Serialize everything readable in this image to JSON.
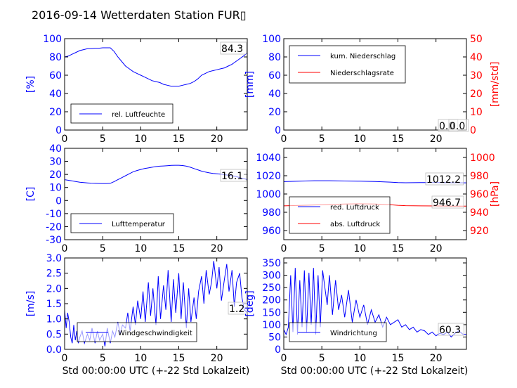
{
  "title": "2016-09-14 Wetterdaten Station FUR▯",
  "xlabel": "Std 00:00:00 UTC (+-22 Std Lokalzeit)",
  "colors": {
    "blue": "#0000ff",
    "red": "#ff0000",
    "black": "#000000"
  },
  "chart_data": [
    {
      "id": "humidity",
      "type": "line",
      "x_ticks": [
        0,
        5,
        10,
        15,
        20
      ],
      "xlim": [
        0,
        24
      ],
      "ylabel": "[%]",
      "ylim": [
        0,
        100
      ],
      "y_ticks": [
        0,
        20,
        40,
        60,
        80,
        100
      ],
      "legend_placement": "lower-left",
      "last_value_label": "84.3",
      "series": [
        {
          "name": "rel. Luftfeuchte",
          "color": "#0000ff",
          "x": [
            0,
            0.5,
            1,
            1.5,
            2,
            2.5,
            3,
            3.5,
            4,
            4.5,
            5,
            5.5,
            6,
            6.5,
            7,
            7.5,
            8,
            8.5,
            9,
            9.5,
            10,
            10.5,
            11,
            11.5,
            12,
            12.5,
            13,
            13.5,
            14,
            14.5,
            15,
            15.5,
            16,
            16.5,
            17,
            17.5,
            18,
            18.5,
            19,
            19.5,
            20,
            20.5,
            21,
            21.5,
            22,
            22.5,
            23,
            23.5,
            24
          ],
          "values": [
            80,
            81,
            83,
            85,
            87,
            88,
            89,
            89,
            89.5,
            89.5,
            90,
            90,
            90,
            86,
            80,
            75,
            70,
            67,
            64,
            62,
            60,
            58,
            56,
            54,
            53,
            52,
            50,
            49,
            48,
            48,
            48,
            49,
            50,
            51,
            53,
            56,
            60,
            62,
            64,
            65,
            66,
            67,
            68,
            70,
            72,
            75,
            78,
            81,
            84.3
          ]
        }
      ]
    },
    {
      "id": "precipitation",
      "type": "line",
      "x_ticks": [
        0,
        5,
        10,
        15,
        20
      ],
      "xlim": [
        0,
        24
      ],
      "ylabel": "[mm]",
      "ylim": [
        0,
        100
      ],
      "y_ticks": [
        0,
        20,
        40,
        60,
        80,
        100
      ],
      "ylabel_right": "[mm/std]",
      "ylim_right": [
        0,
        50
      ],
      "y_ticks_right": [
        0,
        10,
        20,
        30,
        40,
        50
      ],
      "legend_placement": "upper-left",
      "last_value_labels": [
        "0.0",
        "0.0"
      ],
      "series": [
        {
          "name": "kum. Niederschlag",
          "color": "#0000ff",
          "axis": "left",
          "x": [
            0,
            24
          ],
          "values": [
            0,
            0
          ]
        },
        {
          "name": "Niederschlagsrate",
          "color": "#ff0000",
          "axis": "right",
          "x": [
            0,
            24
          ],
          "values": [
            0,
            0
          ]
        }
      ]
    },
    {
      "id": "temperature",
      "type": "line",
      "x_ticks": [
        0,
        5,
        10,
        15,
        20
      ],
      "xlim": [
        0,
        24
      ],
      "ylabel": "[C]",
      "ylim": [
        -30,
        40
      ],
      "y_ticks": [
        -30,
        -20,
        -10,
        0,
        10,
        20,
        30,
        40
      ],
      "legend_placement": "lower-left",
      "last_value_label": "16.1",
      "series": [
        {
          "name": "Lufttemperatur",
          "color": "#0000ff",
          "x": [
            0,
            0.5,
            1,
            1.5,
            2,
            2.5,
            3,
            3.5,
            4,
            4.5,
            5,
            5.5,
            6,
            6.5,
            7,
            7.5,
            8,
            8.5,
            9,
            9.5,
            10,
            10.5,
            11,
            11.5,
            12,
            12.5,
            13,
            13.5,
            14,
            14.5,
            15,
            15.5,
            16,
            16.5,
            17,
            17.5,
            18,
            18.5,
            19,
            19.5,
            20,
            20.5,
            21,
            21.5,
            22,
            22.5,
            23,
            23.5,
            24
          ],
          "values": [
            16,
            15.5,
            15,
            14.5,
            14,
            13.8,
            13.5,
            13.3,
            13.2,
            13.1,
            13,
            13,
            13.2,
            14.5,
            16,
            17.5,
            19,
            20.5,
            22,
            23,
            23.8,
            24.5,
            25,
            25.5,
            26,
            26.3,
            26.5,
            26.7,
            26.9,
            27,
            27,
            26.8,
            26.3,
            25.5,
            24.5,
            23.5,
            22.5,
            21.8,
            21.2,
            20.8,
            20.5,
            20.2,
            19.8,
            19.4,
            19,
            18.4,
            17.6,
            16.8,
            16.1
          ]
        }
      ]
    },
    {
      "id": "pressure",
      "type": "line",
      "x_ticks": [
        0,
        5,
        10,
        15,
        20
      ],
      "xlim": [
        0,
        24
      ],
      "ylabel": "",
      "ylim": [
        950,
        1050
      ],
      "y_ticks": [
        960,
        980,
        1000,
        1020,
        1040
      ],
      "ylabel_right": "[hPa]",
      "ylim_right": [
        910,
        1010
      ],
      "y_ticks_right": [
        920,
        940,
        960,
        980,
        1000
      ],
      "legend_placement": "lower-left",
      "last_value_labels": [
        "1012.2",
        "946.7"
      ],
      "series": [
        {
          "name": "red. Luftdruck",
          "color": "#0000ff",
          "axis": "left",
          "x": [
            0,
            2,
            4,
            6,
            8,
            10,
            12,
            14,
            15,
            16,
            18,
            20,
            22,
            24
          ],
          "values": [
            1013.5,
            1014,
            1014.5,
            1014.5,
            1014.2,
            1014,
            1013.7,
            1013,
            1012.5,
            1012.3,
            1012.5,
            1012.5,
            1012.3,
            1012.2
          ]
        },
        {
          "name": "abs. Luftdruck",
          "color": "#ff0000",
          "axis": "right",
          "x": [
            0,
            2,
            4,
            6,
            8,
            10,
            12,
            14,
            15,
            16,
            18,
            20,
            22,
            24
          ],
          "values": [
            947,
            947.5,
            948,
            948.5,
            949,
            949.2,
            949,
            948.2,
            947.6,
            947.2,
            947,
            946.9,
            946.8,
            946.7
          ]
        }
      ]
    },
    {
      "id": "windspeed",
      "type": "line",
      "x_ticks": [
        0,
        5,
        10,
        15,
        20
      ],
      "xlim": [
        0,
        24
      ],
      "xlabel": "Std 00:00:00 UTC (+-22 Std Lokalzeit)",
      "ylabel": "[m/s]",
      "ylim": [
        0,
        3.0
      ],
      "y_ticks": [
        0.0,
        0.5,
        1.0,
        1.5,
        2.0,
        2.5,
        3.0
      ],
      "legend_placement": "lower-center",
      "last_value_label": "1.2",
      "series": [
        {
          "name": "Windgeschwindigkeit",
          "color": "#0000ff",
          "x": [
            0,
            0.2,
            0.4,
            0.6,
            0.8,
            1,
            1.2,
            1.4,
            1.6,
            1.8,
            2,
            2.3,
            2.6,
            3,
            3.3,
            3.6,
            4,
            4.3,
            4.6,
            5,
            5.3,
            5.6,
            6,
            6.3,
            6.6,
            7,
            7.3,
            7.6,
            8,
            8.3,
            8.6,
            9,
            9.3,
            9.6,
            10,
            10.3,
            10.6,
            11,
            11.3,
            11.6,
            12,
            12.3,
            12.6,
            13,
            13.3,
            13.6,
            14,
            14.3,
            14.6,
            15,
            15.3,
            15.6,
            16,
            16.3,
            16.6,
            17,
            17.3,
            17.6,
            18,
            18.3,
            18.6,
            19,
            19.3,
            19.6,
            20,
            20.3,
            20.6,
            21,
            21.3,
            21.6,
            22,
            22.3,
            22.6,
            23,
            23.3,
            23.6,
            24
          ],
          "values": [
            1.3,
            0.7,
            1.2,
            0.9,
            0.4,
            0.2,
            0.8,
            0.3,
            0.6,
            0.2,
            0.4,
            0.6,
            0.2,
            0.5,
            0.3,
            0.7,
            0.2,
            0.6,
            0.3,
            0.5,
            0.1,
            0.7,
            0.2,
            0.6,
            0.4,
            0.9,
            0.5,
            0.8,
            0.7,
            1.2,
            0.6,
            1.4,
            0.8,
            1.6,
            1.0,
            1.9,
            0.9,
            2.2,
            1.1,
            2.0,
            0.8,
            2.4,
            1.0,
            2.1,
            1.3,
            2.6,
            0.9,
            2.3,
            1.2,
            2.5,
            1.0,
            2.2,
            0.7,
            2.0,
            0.9,
            1.7,
            1.0,
            1.9,
            2.4,
            1.5,
            2.6,
            1.8,
            2.2,
            2.9,
            2.0,
            2.7,
            1.6,
            2.3,
            2.8,
            1.9,
            2.6,
            1.4,
            2.2,
            2.5,
            1.7,
            1.3,
            1.2
          ]
        }
      ]
    },
    {
      "id": "winddirection",
      "type": "line",
      "x_ticks": [
        0,
        5,
        10,
        15,
        20
      ],
      "xlim": [
        0,
        24
      ],
      "xlabel": "Std 00:00:00 UTC (+-22 Std Lokalzeit)",
      "ylabel": "[deg]",
      "ylim": [
        0,
        370
      ],
      "y_ticks": [
        0,
        50,
        100,
        150,
        200,
        250,
        300,
        350
      ],
      "legend_placement": "lower-left",
      "last_value_label": "60.3",
      "series": [
        {
          "name": "Windrichtung",
          "color": "#0000ff",
          "x": [
            0,
            0.3,
            0.6,
            0.9,
            1.2,
            1.5,
            1.8,
            2.1,
            2.4,
            2.7,
            3,
            3.3,
            3.6,
            3.9,
            4.2,
            4.5,
            4.8,
            5.1,
            5.4,
            5.7,
            6,
            6.4,
            6.8,
            7.2,
            7.6,
            8,
            8.5,
            9,
            9.5,
            10,
            10.5,
            11,
            11.5,
            12,
            12.5,
            13,
            13.5,
            14,
            14.5,
            15,
            15.5,
            16,
            16.5,
            17,
            17.5,
            18,
            18.5,
            19,
            19.5,
            20,
            20.5,
            21,
            21.5,
            22,
            22.5,
            23,
            23.5,
            24
          ],
          "values": [
            80,
            60,
            90,
            300,
            70,
            330,
            60,
            280,
            90,
            320,
            70,
            310,
            100,
            330,
            60,
            300,
            90,
            320,
            250,
            180,
            300,
            140,
            280,
            160,
            220,
            130,
            240,
            110,
            200,
            130,
            180,
            100,
            160,
            110,
            140,
            90,
            130,
            100,
            110,
            120,
            90,
            100,
            80,
            90,
            70,
            80,
            75,
            60,
            70,
            55,
            65,
            60,
            70,
            50,
            65,
            75,
            62,
            60.3
          ]
        }
      ]
    }
  ]
}
